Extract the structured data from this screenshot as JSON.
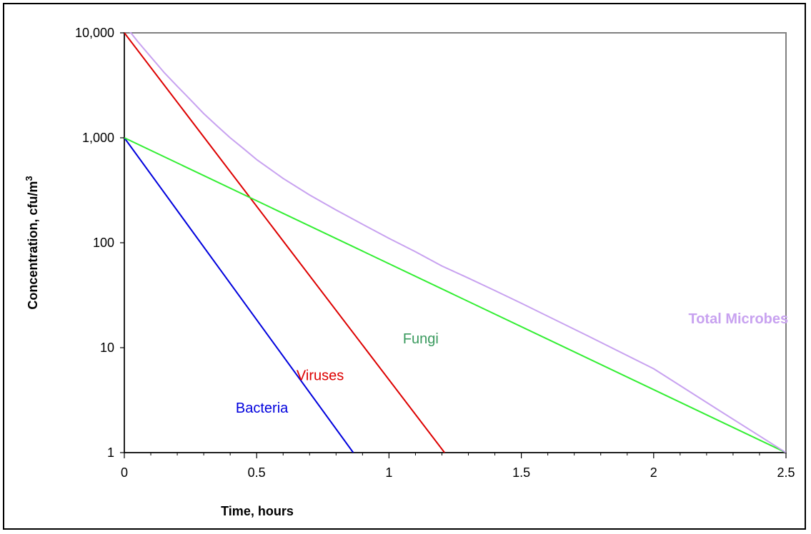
{
  "chart_data": {
    "type": "line",
    "xlabel": "Time, hours",
    "ylabel": {
      "text": "Concentration, cfu/m",
      "superscript": "3"
    },
    "xlim": [
      0,
      2.5
    ],
    "ylim": [
      1,
      10000
    ],
    "y_scale": "log",
    "x_ticks": [
      0,
      0.5,
      1,
      1.5,
      2,
      2.5
    ],
    "x_tick_labels": [
      "0",
      "0.5",
      "1",
      "1.5",
      "2",
      "2.5"
    ],
    "x_minor_step": 0.1,
    "y_ticks": [
      1,
      10,
      100,
      1000,
      10000
    ],
    "y_tick_labels": [
      "1",
      "10",
      "100",
      "1,000",
      "10,000"
    ],
    "grid": false,
    "legend": "none",
    "series": [
      {
        "name": "Bacteria",
        "color": "#0000dd",
        "x": [
          0,
          0.865
        ],
        "y": [
          1000,
          1
        ]
      },
      {
        "name": "Viruses",
        "color": "#dd0000",
        "x": [
          0,
          1.21
        ],
        "y": [
          10000,
          1
        ]
      },
      {
        "name": "Fungi",
        "color": "#33ee33",
        "label_color": "#3a9a5e",
        "x": [
          0,
          2.5
        ],
        "y": [
          1000,
          1
        ]
      },
      {
        "name": "Total Microbes",
        "color": "#c8a2f0",
        "label_bold": true,
        "x": [
          0,
          0.05,
          0.1,
          0.15,
          0.2,
          0.25,
          0.3,
          0.35,
          0.4,
          0.45,
          0.5,
          0.6,
          0.7,
          0.8,
          0.9,
          1.0,
          1.1,
          1.2,
          1.3,
          1.4,
          1.5,
          1.75,
          2.0,
          2.25,
          2.5
        ],
        "y": [
          12000,
          8300,
          5900,
          4200,
          3100,
          2300,
          1700,
          1300,
          1000,
          790,
          620,
          410,
          285,
          205,
          150,
          110,
          82,
          60,
          46,
          35,
          26.5,
          13,
          6.3,
          2.5,
          1
        ]
      }
    ],
    "annotations": [
      {
        "series": "Bacteria",
        "text": "Bacteria",
        "x": 0.52,
        "y": 2.4
      },
      {
        "series": "Viruses",
        "text": "Viruses",
        "x": 0.74,
        "y": 4.9
      },
      {
        "series": "Fungi",
        "text": "Fungi",
        "x": 1.12,
        "y": 11
      },
      {
        "series": "Total Microbes",
        "text": "Total Microbes",
        "x": 2.32,
        "y": 17
      }
    ]
  }
}
